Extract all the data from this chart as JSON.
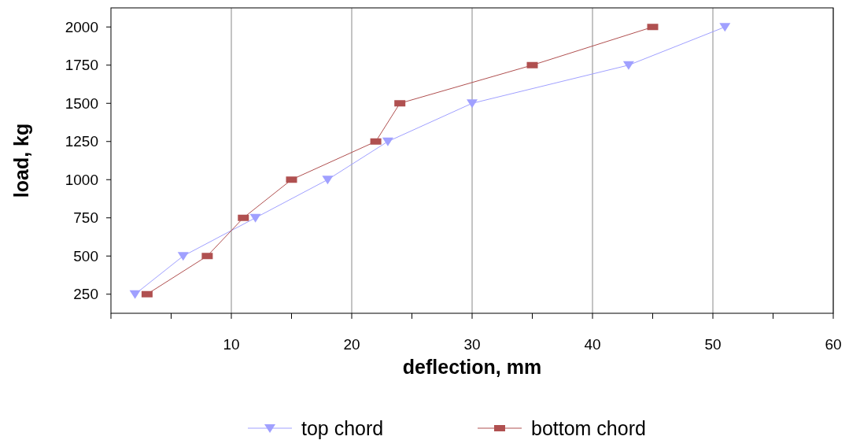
{
  "chart_data": {
    "type": "line",
    "xlabel": "deflection, mm",
    "ylabel": "load, kg",
    "xlim": [
      0,
      60
    ],
    "xticks": [
      {
        "value": 0,
        "label": null
      },
      {
        "value": 5,
        "label": null
      },
      10,
      {
        "value": 15,
        "label": null
      },
      20,
      {
        "value": 25,
        "label": null
      },
      30,
      {
        "value": 35,
        "label": null
      },
      40,
      {
        "value": 45,
        "label": null
      },
      50,
      {
        "value": 55,
        "label": null
      },
      60
    ],
    "ylim": [
      125,
      2125
    ],
    "yticks": [
      250,
      500,
      750,
      1000,
      1250,
      1500,
      1750,
      2000
    ],
    "grid": "x",
    "legend": "bottom",
    "series": [
      {
        "name": "top chord",
        "color": "#a0a0ff",
        "marker": "triangle",
        "x": [
          2,
          6,
          12,
          18,
          23,
          30,
          43,
          51
        ],
        "values": [
          250,
          500,
          750,
          1000,
          1250,
          1500,
          1750,
          2000
        ]
      },
      {
        "name": "bottom chord",
        "color": "#b05050",
        "marker": "square",
        "x": [
          3,
          8,
          11,
          15,
          22,
          24,
          35,
          45
        ],
        "values": [
          250,
          500,
          750,
          1000,
          1250,
          1500,
          1750,
          2000
        ]
      }
    ]
  }
}
